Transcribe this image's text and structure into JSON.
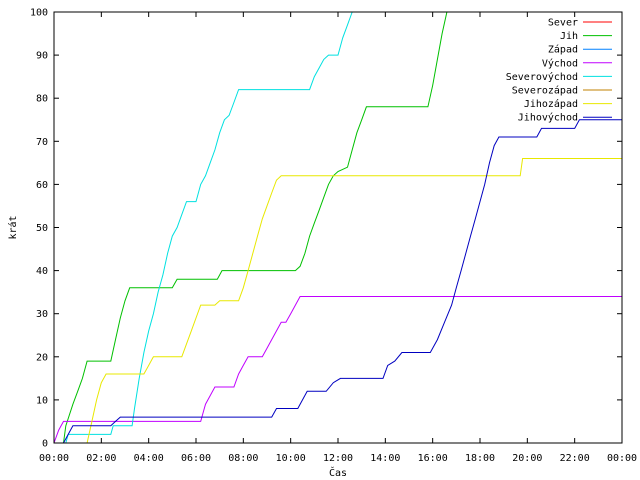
{
  "chart_data": {
    "type": "line",
    "xlabel": "Čas",
    "ylabel": "krát",
    "xlim": [
      0,
      24
    ],
    "ylim": [
      0,
      100
    ],
    "x_ticks": [
      {
        "v": 0,
        "label": "00:00"
      },
      {
        "v": 2,
        "label": "02:00"
      },
      {
        "v": 4,
        "label": "04:00"
      },
      {
        "v": 6,
        "label": "06:00"
      },
      {
        "v": 8,
        "label": "08:00"
      },
      {
        "v": 10,
        "label": "10:00"
      },
      {
        "v": 12,
        "label": "12:00"
      },
      {
        "v": 14,
        "label": "14:00"
      },
      {
        "v": 16,
        "label": "16:00"
      },
      {
        "v": 18,
        "label": "18:00"
      },
      {
        "v": 20,
        "label": "20:00"
      },
      {
        "v": 22,
        "label": "22:00"
      },
      {
        "v": 24,
        "label": "00:00"
      }
    ],
    "y_ticks": [
      0,
      10,
      20,
      30,
      40,
      50,
      60,
      70,
      80,
      90,
      100
    ],
    "legend_position": "top-right",
    "series": [
      {
        "name": "Sever",
        "color": "#ff0000",
        "points": []
      },
      {
        "name": "Jih",
        "color": "#00c000",
        "points": [
          [
            0.4,
            0
          ],
          [
            0.5,
            4
          ],
          [
            0.8,
            9
          ],
          [
            1.0,
            12
          ],
          [
            1.2,
            15
          ],
          [
            1.4,
            19
          ],
          [
            2.4,
            19
          ],
          [
            2.6,
            24
          ],
          [
            2.8,
            29
          ],
          [
            3.0,
            33
          ],
          [
            3.2,
            36
          ],
          [
            5.0,
            36
          ],
          [
            5.1,
            37
          ],
          [
            5.2,
            38
          ],
          [
            6.9,
            38
          ],
          [
            7.0,
            39
          ],
          [
            7.1,
            40
          ],
          [
            10.2,
            40
          ],
          [
            10.4,
            41
          ],
          [
            10.6,
            44
          ],
          [
            10.8,
            48
          ],
          [
            11.0,
            51
          ],
          [
            11.2,
            54
          ],
          [
            11.4,
            57
          ],
          [
            11.6,
            60
          ],
          [
            11.8,
            62
          ],
          [
            12.0,
            63
          ],
          [
            12.4,
            64
          ],
          [
            12.6,
            68
          ],
          [
            12.8,
            72
          ],
          [
            13.0,
            75
          ],
          [
            13.2,
            78
          ],
          [
            15.8,
            78
          ],
          [
            16.0,
            83
          ],
          [
            16.2,
            89
          ],
          [
            16.4,
            95
          ],
          [
            16.6,
            100
          ]
        ]
      },
      {
        "name": "Západ",
        "color": "#0080ff",
        "points": []
      },
      {
        "name": "Východ",
        "color": "#c000ff",
        "points": [
          [
            0,
            0
          ],
          [
            0.2,
            3
          ],
          [
            0.4,
            5
          ],
          [
            6.2,
            5
          ],
          [
            6.3,
            7
          ],
          [
            6.4,
            9
          ],
          [
            6.6,
            11
          ],
          [
            6.8,
            13
          ],
          [
            7.6,
            13
          ],
          [
            7.8,
            16
          ],
          [
            8.0,
            18
          ],
          [
            8.2,
            20
          ],
          [
            8.8,
            20
          ],
          [
            9.0,
            22
          ],
          [
            9.2,
            24
          ],
          [
            9.4,
            26
          ],
          [
            9.6,
            28
          ],
          [
            9.8,
            28
          ],
          [
            10.0,
            30
          ],
          [
            10.2,
            32
          ],
          [
            10.4,
            34
          ],
          [
            24,
            34
          ]
        ]
      },
      {
        "name": "Severovýchod",
        "color": "#00e0e0",
        "points": [
          [
            0.5,
            0
          ],
          [
            0.6,
            2
          ],
          [
            2.4,
            2
          ],
          [
            2.5,
            4
          ],
          [
            3.3,
            4
          ],
          [
            3.4,
            8
          ],
          [
            3.6,
            15
          ],
          [
            3.8,
            21
          ],
          [
            4.0,
            26
          ],
          [
            4.2,
            30
          ],
          [
            4.4,
            35
          ],
          [
            4.6,
            39
          ],
          [
            4.8,
            44
          ],
          [
            5.0,
            48
          ],
          [
            5.2,
            50
          ],
          [
            5.4,
            53
          ],
          [
            5.6,
            56
          ],
          [
            6.0,
            56
          ],
          [
            6.2,
            60
          ],
          [
            6.4,
            62
          ],
          [
            6.6,
            65
          ],
          [
            6.8,
            68
          ],
          [
            7.0,
            72
          ],
          [
            7.2,
            75
          ],
          [
            7.4,
            76
          ],
          [
            7.6,
            79
          ],
          [
            7.8,
            82
          ],
          [
            10.8,
            82
          ],
          [
            11.0,
            85
          ],
          [
            11.2,
            87
          ],
          [
            11.4,
            89
          ],
          [
            11.6,
            90
          ],
          [
            12.0,
            90
          ],
          [
            12.2,
            94
          ],
          [
            12.4,
            97
          ],
          [
            12.6,
            100
          ]
        ]
      },
      {
        "name": "Severozápad",
        "color": "#c08000",
        "points": []
      },
      {
        "name": "Jihozápad",
        "color": "#e8e800",
        "points": [
          [
            1.4,
            0
          ],
          [
            1.6,
            5
          ],
          [
            1.8,
            10
          ],
          [
            2.0,
            14
          ],
          [
            2.2,
            16
          ],
          [
            3.8,
            16
          ],
          [
            4.0,
            18
          ],
          [
            4.2,
            20
          ],
          [
            5.4,
            20
          ],
          [
            5.6,
            23
          ],
          [
            5.8,
            26
          ],
          [
            6.0,
            29
          ],
          [
            6.2,
            32
          ],
          [
            6.8,
            32
          ],
          [
            7.0,
            33
          ],
          [
            7.8,
            33
          ],
          [
            8.0,
            36
          ],
          [
            8.2,
            40
          ],
          [
            8.4,
            44
          ],
          [
            8.6,
            48
          ],
          [
            8.8,
            52
          ],
          [
            9.0,
            55
          ],
          [
            9.2,
            58
          ],
          [
            9.4,
            61
          ],
          [
            9.6,
            62
          ],
          [
            19.7,
            62
          ],
          [
            19.8,
            66
          ],
          [
            24,
            66
          ]
        ]
      },
      {
        "name": "Jihovýchod",
        "color": "#0000c0",
        "points": [
          [
            0.4,
            0
          ],
          [
            0.6,
            2
          ],
          [
            0.8,
            4
          ],
          [
            2.4,
            4
          ],
          [
            2.6,
            5
          ],
          [
            2.8,
            6
          ],
          [
            9.2,
            6
          ],
          [
            9.4,
            8
          ],
          [
            10.3,
            8
          ],
          [
            10.5,
            10
          ],
          [
            10.7,
            12
          ],
          [
            11.5,
            12
          ],
          [
            11.8,
            14
          ],
          [
            12.1,
            15
          ],
          [
            13.9,
            15
          ],
          [
            14.1,
            18
          ],
          [
            14.4,
            19
          ],
          [
            14.7,
            21
          ],
          [
            15.9,
            21
          ],
          [
            16.2,
            24
          ],
          [
            16.5,
            28
          ],
          [
            16.8,
            32
          ],
          [
            17.0,
            36
          ],
          [
            17.2,
            40
          ],
          [
            17.4,
            44
          ],
          [
            17.6,
            48
          ],
          [
            17.8,
            52
          ],
          [
            18.0,
            56
          ],
          [
            18.2,
            60
          ],
          [
            18.4,
            65
          ],
          [
            18.6,
            69
          ],
          [
            18.8,
            71
          ],
          [
            20.4,
            71
          ],
          [
            20.6,
            73
          ],
          [
            22.0,
            73
          ],
          [
            22.2,
            75
          ],
          [
            24,
            75
          ]
        ]
      }
    ]
  }
}
